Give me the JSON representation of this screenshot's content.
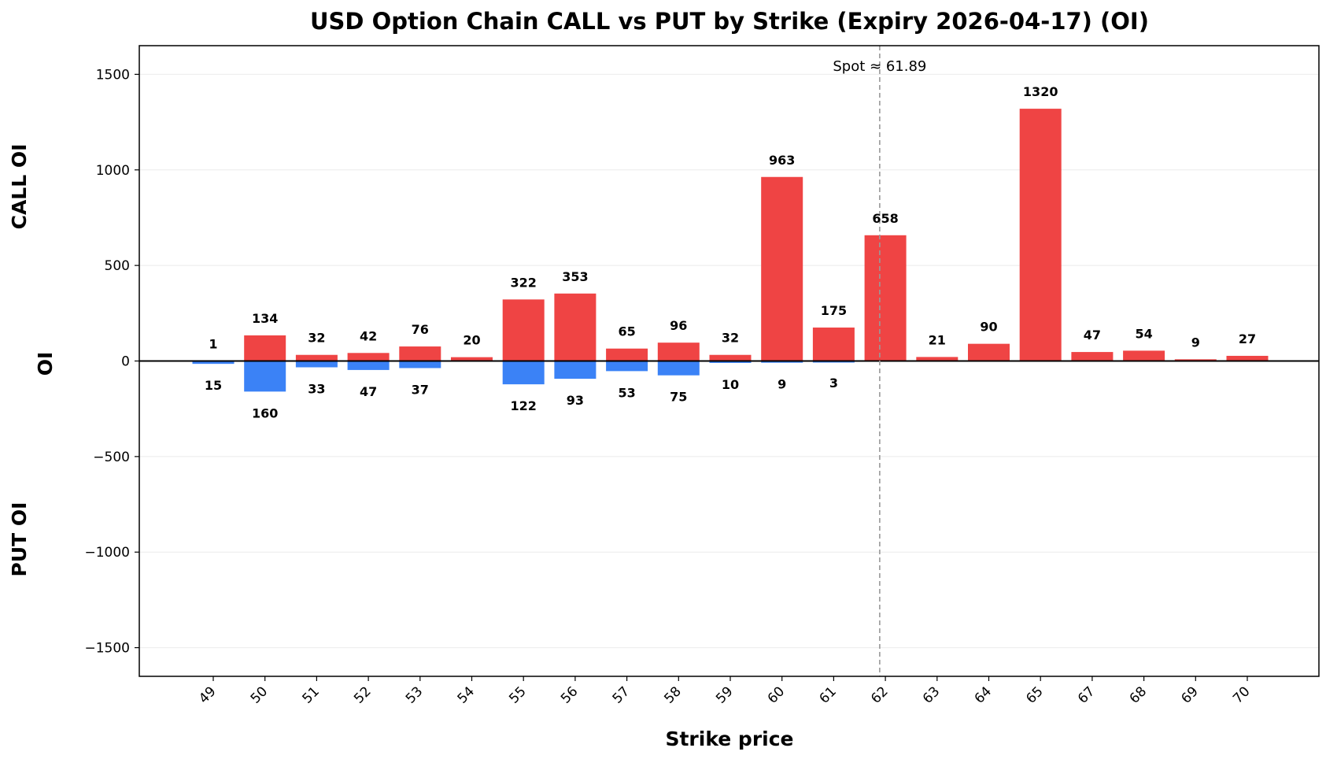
{
  "chart_data": {
    "type": "bar",
    "title": "USD Option Chain CALL vs PUT by Strike (Expiry 2026-04-17) (OI)",
    "xlabel": "Strike price",
    "ylabel": "OI",
    "ylabel_top": "CALL OI",
    "ylabel_bottom": "PUT OI",
    "ylim": [
      -1650,
      1650
    ],
    "yticks": [
      -1500,
      -1000,
      -500,
      0,
      500,
      1000,
      1500
    ],
    "yticks_labels": [
      "−1500",
      "−1000",
      "−500",
      "0",
      "500",
      "1000",
      "1500"
    ],
    "grid": true,
    "categories": [
      "49",
      "50",
      "51",
      "52",
      "53",
      "54",
      "55",
      "56",
      "57",
      "58",
      "59",
      "60",
      "61",
      "62",
      "63",
      "64",
      "65",
      "67",
      "68",
      "69",
      "70"
    ],
    "series": [
      {
        "name": "CALL",
        "color": "#ef4444",
        "values": [
          1,
          134,
          32,
          42,
          76,
          20,
          322,
          353,
          65,
          96,
          32,
          963,
          175,
          658,
          21,
          90,
          1320,
          47,
          54,
          9,
          27
        ],
        "labels": [
          "1",
          "134",
          "32",
          "42",
          "76",
          "20",
          "322",
          "353",
          "65",
          "96",
          "32",
          "963",
          "175",
          "658",
          "21",
          "90",
          "1320",
          "47",
          "54",
          "9",
          "27"
        ]
      },
      {
        "name": "PUT",
        "color": "#3b82f6",
        "values": [
          15,
          160,
          33,
          47,
          37,
          0,
          122,
          93,
          53,
          75,
          10,
          9,
          3,
          0,
          0,
          0,
          0,
          0,
          0,
          0,
          0
        ],
        "labels": [
          "15",
          "160",
          "33",
          "47",
          "37",
          "",
          "122",
          "93",
          "53",
          "75",
          "10",
          "9",
          "3",
          "",
          "",
          "",
          "",
          "",
          "",
          "",
          ""
        ]
      }
    ],
    "spot": {
      "value": 61.89,
      "label": "Spot ≈ 61.89"
    }
  }
}
